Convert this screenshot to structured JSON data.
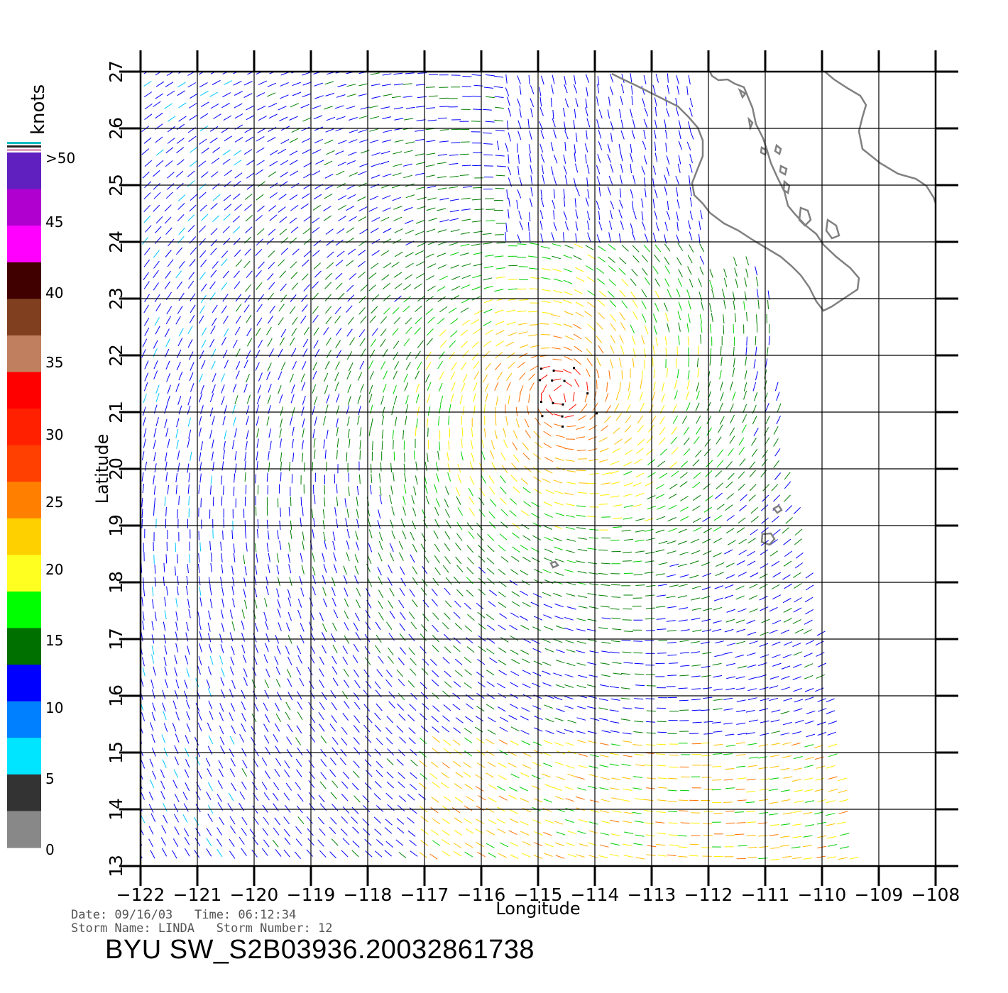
{
  "map": {
    "axis_x_label": "Longitude",
    "axis_y_label": "Latitude",
    "lon_ticks": [
      -122,
      -121,
      -120,
      -119,
      -118,
      -117,
      -116,
      -115,
      -114,
      -113,
      -112,
      -111,
      -110,
      -109,
      -108
    ],
    "lat_ticks": [
      13,
      14,
      15,
      16,
      17,
      18,
      19,
      20,
      21,
      22,
      23,
      24,
      25,
      26,
      27
    ],
    "lon_range": [
      -122,
      -108
    ],
    "lat_range": [
      13,
      27
    ],
    "grid": true
  },
  "colorbar": {
    "title": "knots",
    "labels": [
      "0",
      "5",
      "10",
      "15",
      "20",
      "25",
      "30",
      "35",
      "40",
      "45",
      ">50"
    ],
    "colors": [
      "#888888",
      "#333333",
      "#00e5ff",
      "#0080ff",
      "#0000ff",
      "#007000",
      "#00ff00",
      "#ffff20",
      "#ffd000",
      "#ff8000",
      "#ff4000",
      "#ff2000",
      "#ff0000",
      "#c08060",
      "#804020",
      "#400000",
      "#ff00ff",
      "#b000d0",
      "#6020c0"
    ]
  },
  "footer": {
    "date_line": "Date: 09/16/03   Time: 06:12:34",
    "storm_line": "Storm Name: LINDA   Storm Number: 12",
    "product_id": "BYU SW_S2B03936.20032861738"
  }
}
